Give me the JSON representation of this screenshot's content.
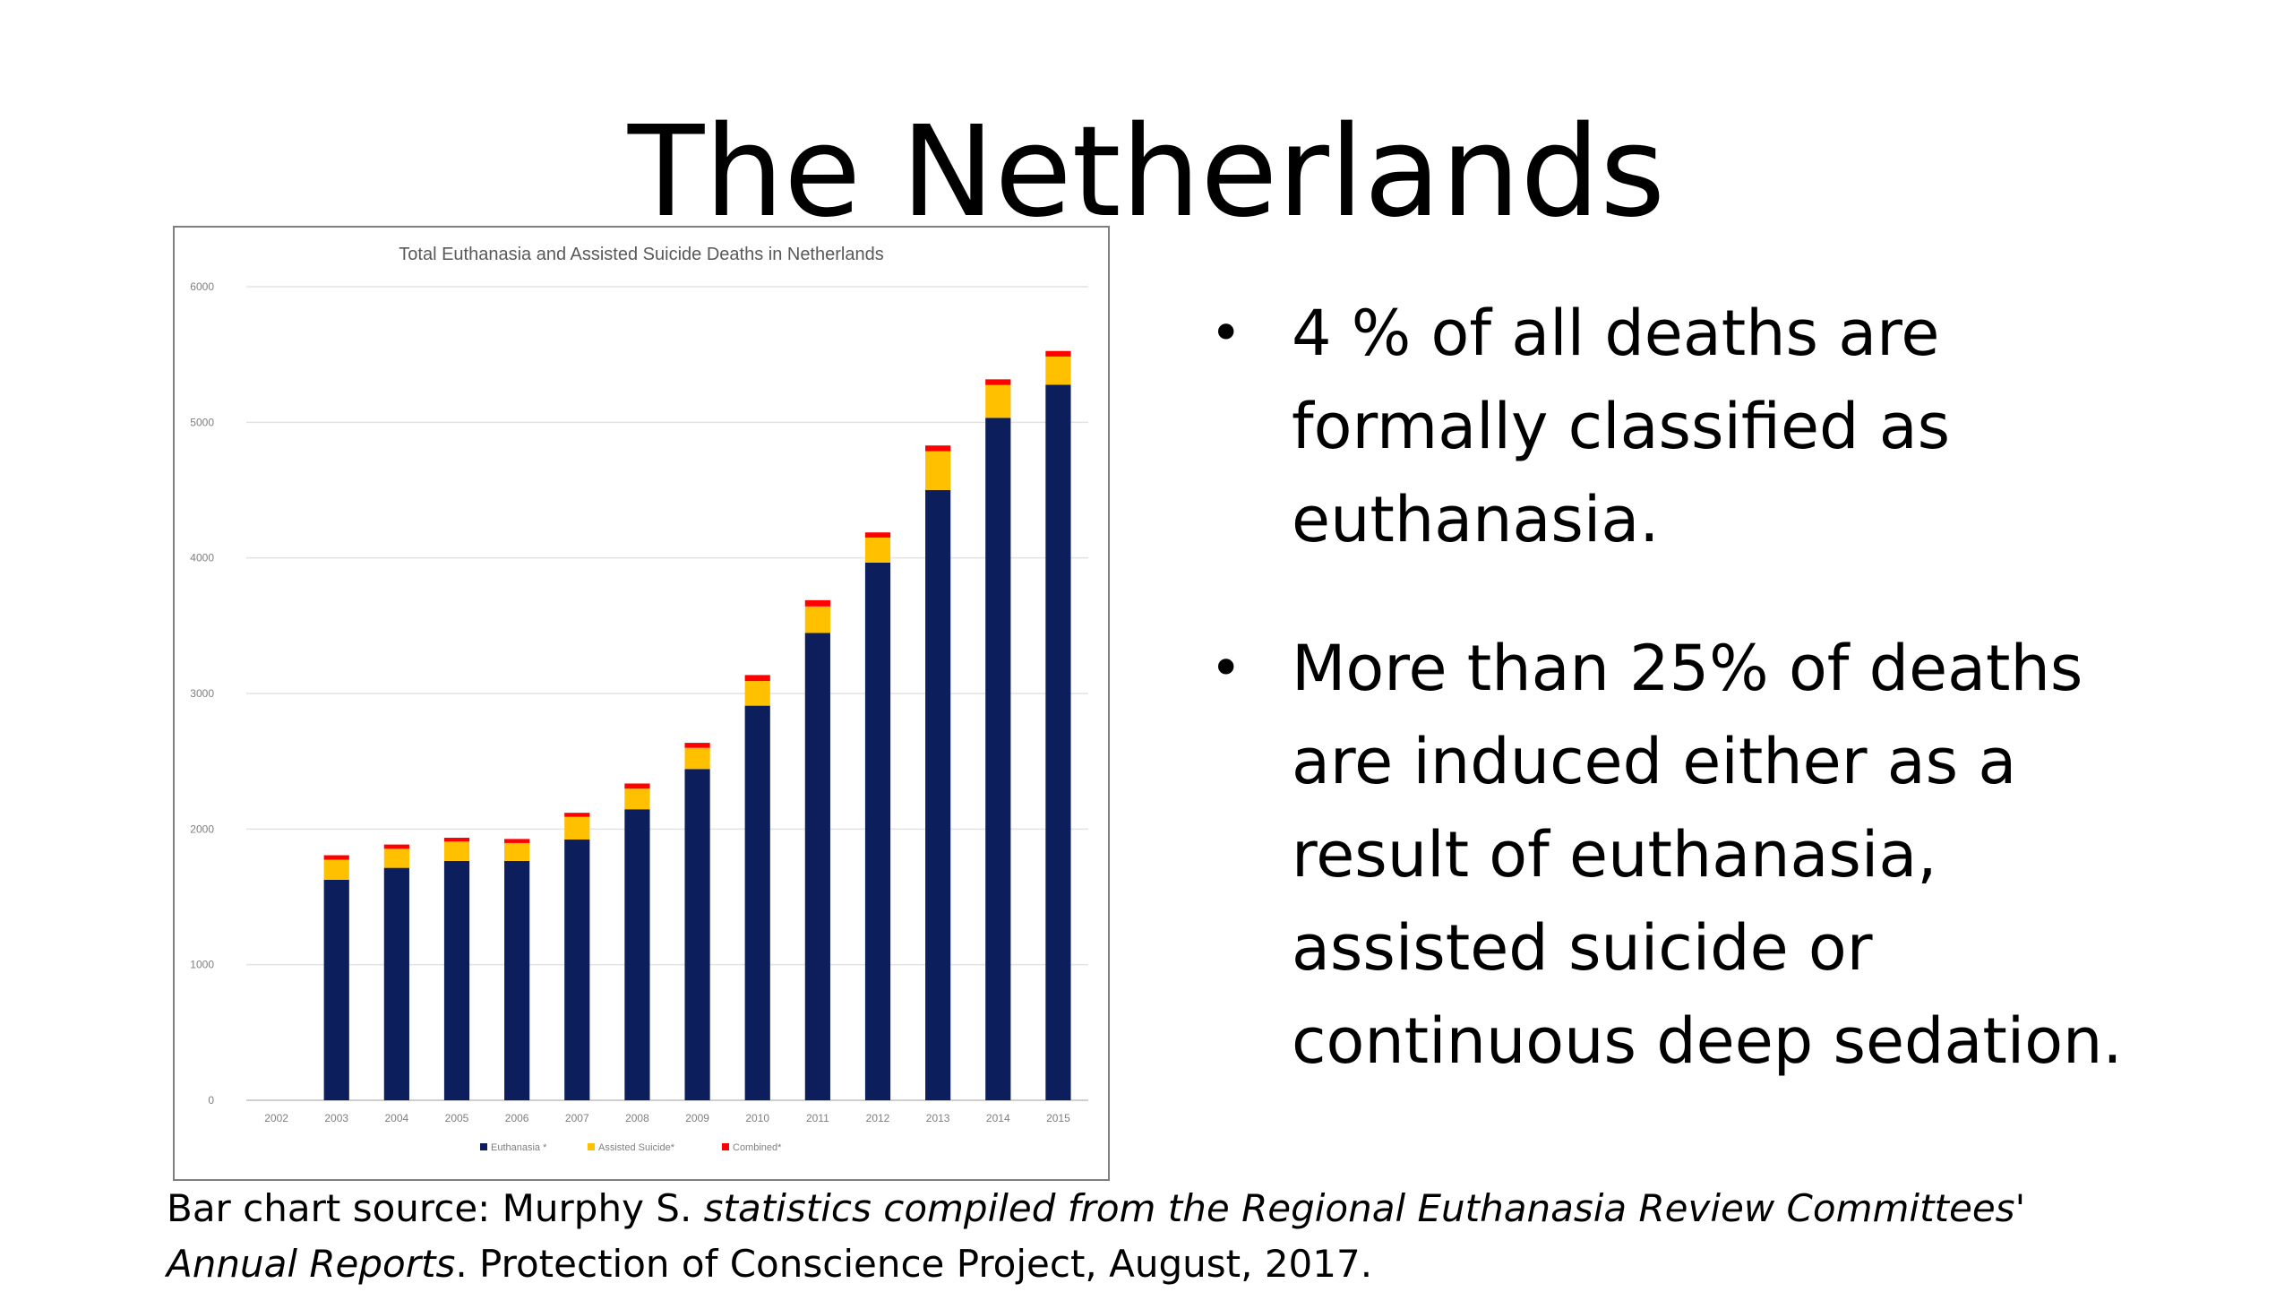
{
  "slide": {
    "title": "The Netherlands",
    "bullets": [
      "4 % of all deaths are formally classified as euthanasia.",
      "More than 25% of deaths are induced either as a result of euthanasia, assisted suicide or continuous deep sedation."
    ],
    "bullet_symbol": "•",
    "source": {
      "prefix": "Bar chart source: Murphy S. ",
      "italic1": "statistics compiled from the Regional Euthanasia Review Committees' Annual Reports",
      "suffix": ". Protection of Conscience Project, August, 2017."
    }
  },
  "chart_data": {
    "type": "bar",
    "stacked": true,
    "title": "Total Euthanasia and Assisted Suicide Deaths in Netherlands",
    "categories": [
      "2002",
      "2003",
      "2004",
      "2005",
      "2006",
      "2007",
      "2008",
      "2009",
      "2010",
      "2011",
      "2012",
      "2013",
      "2014",
      "2015"
    ],
    "series": [
      {
        "name": "Euthanasia *",
        "color": "#0c1e5b",
        "values": [
          0,
          1626,
          1714,
          1765,
          1765,
          1923,
          2146,
          2443,
          2910,
          3446,
          3965,
          4501,
          5033,
          5277
        ]
      },
      {
        "name": "Assisted Suicide*",
        "color": "#ffc000",
        "values": [
          0,
          148,
          141,
          143,
          132,
          167,
          152,
          156,
          182,
          196,
          185,
          286,
          242,
          208
        ]
      },
      {
        "name": "Combined*",
        "color": "#ff0000",
        "values": [
          0,
          33,
          31,
          28,
          30,
          30,
          38,
          37,
          44,
          46,
          38,
          42,
          42,
          41
        ]
      }
    ],
    "yticks": [
      "0",
      "1000",
      "2000",
      "3000",
      "4000",
      "5000",
      "6000"
    ],
    "ylim": [
      0,
      6000
    ],
    "grid": true,
    "legend": "bottom"
  }
}
